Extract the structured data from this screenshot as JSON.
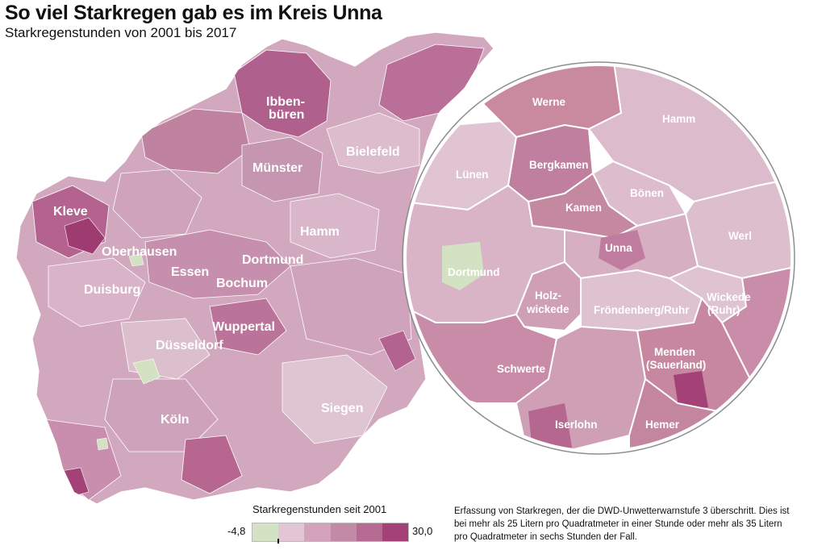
{
  "title": "So viel Starkregen gab es im Kreis Unna",
  "subtitle": "Starkregenstunden von 2001 bis 2017",
  "map": {
    "cities": [
      {
        "id": "ibbenbueren-1",
        "name": "Ibben-"
      },
      {
        "id": "ibbenbueren-2",
        "name": "büren"
      },
      {
        "id": "bielefeld",
        "name": "Bielefeld"
      },
      {
        "id": "muenster",
        "name": "Münster"
      },
      {
        "id": "kleve",
        "name": "Kleve"
      },
      {
        "id": "hamm",
        "name": "Hamm"
      },
      {
        "id": "oberhausen",
        "name": "Oberhausen"
      },
      {
        "id": "dortmund",
        "name": "Dortmund"
      },
      {
        "id": "essen",
        "name": "Essen"
      },
      {
        "id": "bochum",
        "name": "Bochum"
      },
      {
        "id": "duisburg",
        "name": "Duisburg"
      },
      {
        "id": "wuppertal",
        "name": "Wuppertal"
      },
      {
        "id": "duesseldorf",
        "name": "Düsseldorf"
      },
      {
        "id": "siegen",
        "name": "Siegen"
      },
      {
        "id": "koeln",
        "name": "Köln"
      }
    ]
  },
  "inset": {
    "municipalities": [
      {
        "id": "werne",
        "name": "Werne"
      },
      {
        "id": "hamm",
        "name": "Hamm"
      },
      {
        "id": "bergkamen",
        "name": "Bergkamen"
      },
      {
        "id": "luenen",
        "name": "Lünen"
      },
      {
        "id": "boenen",
        "name": "Bönen"
      },
      {
        "id": "kamen",
        "name": "Kamen"
      },
      {
        "id": "werl",
        "name": "Werl"
      },
      {
        "id": "unna",
        "name": "Unna"
      },
      {
        "id": "dortmund",
        "name": "Dortmund"
      },
      {
        "id": "holzwickede-1",
        "name": "Holz-"
      },
      {
        "id": "holzwickede-2",
        "name": "wickede"
      },
      {
        "id": "wickede-1",
        "name": "Wickede"
      },
      {
        "id": "wickede-2",
        "name": "(Ruhr)"
      },
      {
        "id": "froendenberg",
        "name": "Fröndenberg/Ruhr"
      },
      {
        "id": "menden-1",
        "name": "Menden"
      },
      {
        "id": "menden-2",
        "name": "(Sauerland)"
      },
      {
        "id": "schwerte",
        "name": "Schwerte"
      },
      {
        "id": "iserlohn",
        "name": "Iserlohn"
      },
      {
        "id": "hemer",
        "name": "Hemer"
      }
    ]
  },
  "legend": {
    "title": "Starkregenstunden seit 2001",
    "min": "-4,8",
    "max": "30,0",
    "colors": [
      "#d3e2c3",
      "#e2c6d6",
      "#d2a3bb",
      "#c28aa6",
      "#b46a91",
      "#a44277"
    ]
  },
  "note": "Erfassung von Starkregen, der die DWD-Unwetterwarnstufe 3 überschritt. Dies ist bei mehr als 25 Litern pro Quadratmeter in einer Stunde oder mehr als 35 Litern pro Quadratmeter in sechs Stunden der Fall."
}
